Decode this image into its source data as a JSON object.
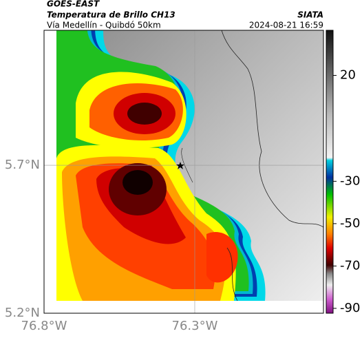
{
  "header": {
    "satellite": "GOES-EAST",
    "product": "Temperatura de Brillo CH13",
    "route": "Vía Medellín - Quibdó 50km",
    "source": "SIATA",
    "timestamp": "2024-08-21 16:59"
  },
  "map": {
    "xlim": [
      -76.8,
      -75.873
    ],
    "ylim": [
      5.2,
      6.156
    ],
    "xticks": [
      {
        "value": -76.8,
        "label": "76.8°W"
      },
      {
        "value": -76.3,
        "label": "76.3°W"
      }
    ],
    "yticks": [
      {
        "value": 5.2,
        "label": "5.2°N"
      },
      {
        "value": 5.7,
        "label": "5.7°N"
      }
    ],
    "grid": true
  },
  "colorbar": {
    "lim": [
      -92.3,
      41.3
    ],
    "ticks": [
      20,
      -30,
      -50,
      -70,
      -90
    ]
  }
}
